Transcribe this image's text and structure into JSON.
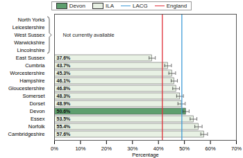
{
  "chart_data": {
    "type": "bar",
    "orientation": "horizontal",
    "x_label": "Percentage",
    "categories": [
      "North Yorks",
      "Leicestershire",
      "West Sussex",
      "Warwickshire",
      "Lincolnshire",
      "East Sussex",
      "Cumbria",
      "Worcestershire",
      "Hampshire",
      "Gloucestershire",
      "Somerset",
      "Dorset",
      "Devon",
      "Essex",
      "Norfolk",
      "Cambridgeshire"
    ],
    "values": [
      null,
      null,
      null,
      null,
      null,
      37.6,
      43.7,
      45.3,
      46.1,
      46.8,
      48.3,
      48.9,
      50.6,
      53.5,
      55.4,
      57.6
    ],
    "value_labels": [
      null,
      null,
      null,
      null,
      null,
      "37.6%",
      "43.7%",
      "45.3%",
      "46.1%",
      "46.8%",
      "48.3%",
      "48.9%",
      "50.6%",
      "53.5%",
      "55.4%",
      "57.6%"
    ],
    "errors": [
      null,
      null,
      null,
      null,
      null,
      1.2,
      1.3,
      1.3,
      1.2,
      1.3,
      1.3,
      1.4,
      1.2,
      1.3,
      1.4,
      1.3
    ],
    "colors": [
      "#e8f1e4",
      "#e8f1e4",
      "#e8f1e4",
      "#e8f1e4",
      "#e8f1e4",
      "#e8f1e4",
      "#e8f1e4",
      "#e8f1e4",
      "#e8f1e4",
      "#e8f1e4",
      "#e8f1e4",
      "#e8f1e4",
      "#5e9f6e",
      "#e8f1e4",
      "#e8f1e4",
      "#e8f1e4"
    ],
    "data_labels": true,
    "legend": "top",
    "legend_items": [
      {
        "name": "Devon",
        "color": "#5e9f6e"
      },
      {
        "name": "ILA",
        "color": "#e8f1e4"
      }
    ],
    "reference_lines": [
      {
        "name": "LACG",
        "value": 49.0,
        "color": "#3d9ad6"
      },
      {
        "name": "England",
        "value": 41.5,
        "color": "#e0303a"
      }
    ],
    "annotations": [
      {
        "text": "Not currently available"
      }
    ],
    "xlim": [
      0,
      70
    ],
    "xticks": [
      {
        "value": 0,
        "label": "0%"
      },
      {
        "value": 10,
        "label": "10%"
      },
      {
        "value": 20,
        "label": "20%"
      },
      {
        "value": 30,
        "label": "30%"
      },
      {
        "value": 40,
        "label": "40%"
      },
      {
        "value": 50,
        "label": "50%"
      },
      {
        "value": 60,
        "label": "60%"
      },
      {
        "value": 70,
        "label": "70%"
      }
    ],
    "grid": false
  }
}
